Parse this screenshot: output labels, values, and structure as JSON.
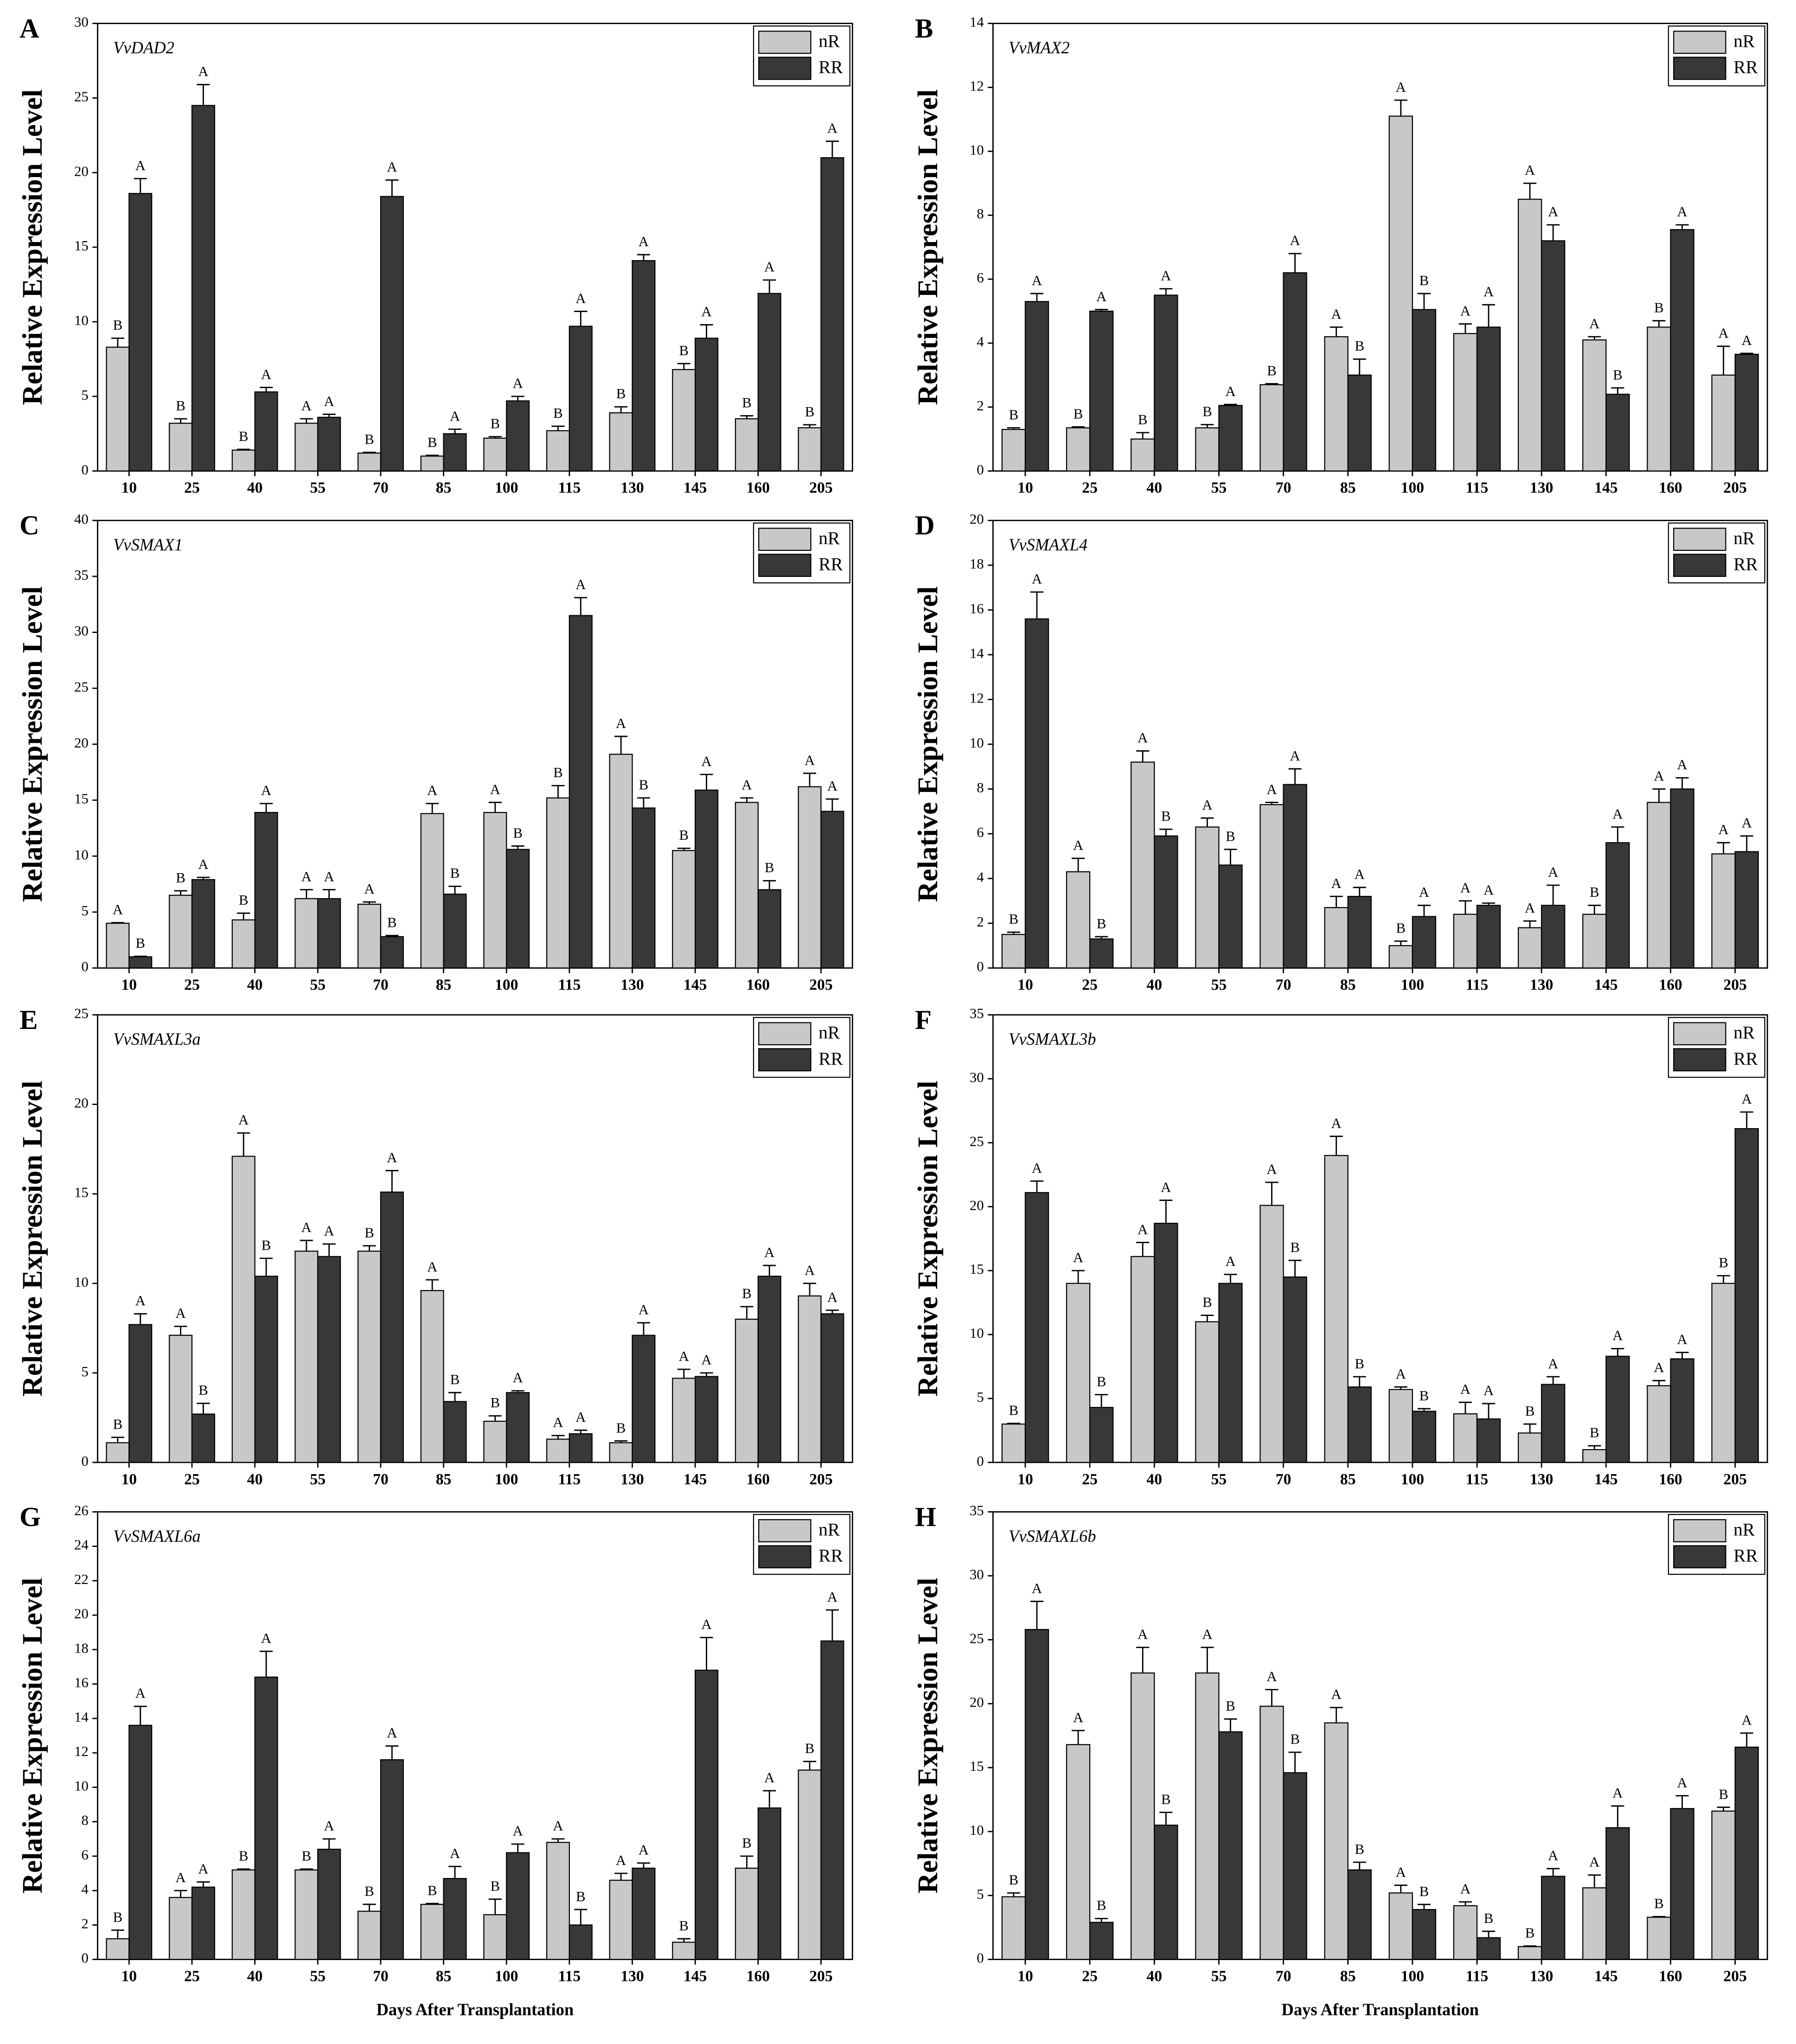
{
  "chart_data": [
    {
      "type": "bar",
      "panel": "A",
      "title": "VvDAD2",
      "ylabel": "Relative Expression Level",
      "ylim": [
        0,
        30
      ],
      "yticks": [
        0,
        5,
        10,
        15,
        20,
        25,
        30
      ],
      "categories": [
        "10",
        "25",
        "40",
        "55",
        "70",
        "85",
        "100",
        "115",
        "130",
        "145",
        "160",
        "205"
      ],
      "series": [
        {
          "name": "nR",
          "color": "#c8c8c8",
          "values": [
            8.3,
            3.2,
            1.4,
            3.2,
            1.2,
            1.0,
            2.2,
            2.7,
            3.9,
            6.8,
            3.5,
            2.9
          ],
          "errors": [
            0.6,
            0.3,
            0.05,
            0.3,
            0.05,
            0.05,
            0.1,
            0.3,
            0.4,
            0.4,
            0.2,
            0.2
          ],
          "letters": [
            "B",
            "B",
            "B",
            "A",
            "B",
            "B",
            "B",
            "B",
            "B",
            "B",
            "B",
            "B"
          ]
        },
        {
          "name": "RR",
          "color": "#383838",
          "values": [
            18.6,
            24.5,
            5.3,
            3.6,
            18.4,
            2.5,
            4.7,
            9.7,
            14.1,
            8.9,
            11.9,
            21.0
          ],
          "errors": [
            1.0,
            1.4,
            0.3,
            0.2,
            1.1,
            0.3,
            0.3,
            1.0,
            0.4,
            0.9,
            0.9,
            1.1
          ],
          "letters": [
            "A",
            "A",
            "A",
            "A",
            "A",
            "A",
            "A",
            "A",
            "A",
            "A",
            "A",
            "A"
          ]
        }
      ]
    },
    {
      "type": "bar",
      "panel": "B",
      "title": "VvMAX2",
      "ylabel": "Relative Expression Level",
      "ylim": [
        0,
        14
      ],
      "yticks": [
        0,
        2,
        4,
        6,
        8,
        10,
        12,
        14
      ],
      "categories": [
        "10",
        "25",
        "40",
        "55",
        "70",
        "85",
        "100",
        "115",
        "130",
        "145",
        "160",
        "205"
      ],
      "series": [
        {
          "name": "nR",
          "color": "#c8c8c8",
          "values": [
            1.3,
            1.35,
            1.0,
            1.35,
            2.7,
            4.2,
            11.1,
            4.3,
            8.5,
            4.1,
            4.5,
            3.0
          ],
          "errors": [
            0.05,
            0.03,
            0.2,
            0.1,
            0.03,
            0.3,
            0.5,
            0.3,
            0.5,
            0.1,
            0.2,
            0.9
          ],
          "letters": [
            "B",
            "B",
            "B",
            "B",
            "B",
            "A",
            "A",
            "A",
            "A",
            "A",
            "B",
            "A"
          ]
        },
        {
          "name": "RR",
          "color": "#383838",
          "values": [
            5.3,
            5.0,
            5.5,
            2.05,
            6.2,
            3.0,
            5.05,
            4.5,
            7.2,
            2.4,
            7.55,
            3.65
          ],
          "errors": [
            0.25,
            0.05,
            0.2,
            0.03,
            0.6,
            0.5,
            0.5,
            0.7,
            0.5,
            0.2,
            0.15,
            0.03
          ],
          "letters": [
            "A",
            "A",
            "A",
            "A",
            "A",
            "B",
            "B",
            "A",
            "A",
            "B",
            "A",
            "A"
          ]
        }
      ]
    },
    {
      "type": "bar",
      "panel": "C",
      "title": "VvSMAX1",
      "ylabel": "Relative Expression Level",
      "ylim": [
        0,
        40
      ],
      "yticks": [
        0,
        5,
        10,
        15,
        20,
        25,
        30,
        35,
        40
      ],
      "categories": [
        "10",
        "25",
        "40",
        "55",
        "70",
        "85",
        "100",
        "115",
        "130",
        "145",
        "160",
        "205"
      ],
      "series": [
        {
          "name": "nR",
          "color": "#c8c8c8",
          "values": [
            4.0,
            6.5,
            4.3,
            6.2,
            5.7,
            13.8,
            13.9,
            15.2,
            19.1,
            10.5,
            14.8,
            16.2
          ],
          "errors": [
            0.05,
            0.4,
            0.6,
            0.8,
            0.2,
            0.9,
            0.9,
            1.1,
            1.6,
            0.2,
            0.4,
            1.2
          ],
          "letters": [
            "A",
            "B",
            "B",
            "A",
            "A",
            "A",
            "A",
            "B",
            "A",
            "B",
            "A",
            "A"
          ]
        },
        {
          "name": "RR",
          "color": "#383838",
          "values": [
            1.0,
            7.9,
            13.9,
            6.2,
            2.8,
            6.6,
            10.6,
            31.5,
            14.3,
            15.9,
            7.0,
            14.0
          ],
          "errors": [
            0.05,
            0.2,
            0.8,
            0.8,
            0.1,
            0.7,
            0.3,
            1.6,
            0.9,
            1.4,
            0.8,
            1.1
          ],
          "letters": [
            "B",
            "A",
            "A",
            "A",
            "B",
            "B",
            "B",
            "A",
            "B",
            "A",
            "B",
            "A"
          ]
        }
      ]
    },
    {
      "type": "bar",
      "panel": "D",
      "title": "VvSMAXL4",
      "ylabel": "Relative Expression Level",
      "ylim": [
        0,
        20
      ],
      "yticks": [
        0,
        2,
        4,
        6,
        8,
        10,
        12,
        14,
        16,
        18,
        20
      ],
      "categories": [
        "10",
        "25",
        "40",
        "55",
        "70",
        "85",
        "100",
        "115",
        "130",
        "145",
        "160",
        "205"
      ],
      "series": [
        {
          "name": "nR",
          "color": "#c8c8c8",
          "values": [
            1.5,
            4.3,
            9.2,
            6.3,
            7.3,
            2.7,
            1.0,
            2.4,
            1.8,
            2.4,
            7.4,
            5.1
          ],
          "errors": [
            0.1,
            0.6,
            0.5,
            0.4,
            0.1,
            0.5,
            0.2,
            0.6,
            0.3,
            0.4,
            0.6,
            0.5
          ],
          "letters": [
            "B",
            "A",
            "A",
            "A",
            "A",
            "A",
            "B",
            "A",
            "A",
            "B",
            "A",
            "A"
          ]
        },
        {
          "name": "RR",
          "color": "#383838",
          "values": [
            15.6,
            1.3,
            5.9,
            4.6,
            8.2,
            3.2,
            2.3,
            2.8,
            2.8,
            5.6,
            8.0,
            5.2
          ],
          "errors": [
            1.2,
            0.1,
            0.3,
            0.7,
            0.7,
            0.4,
            0.5,
            0.1,
            0.9,
            0.7,
            0.5,
            0.7
          ],
          "letters": [
            "A",
            "B",
            "B",
            "B",
            "A",
            "A",
            "A",
            "A",
            "A",
            "A",
            "A",
            "A"
          ]
        }
      ]
    },
    {
      "type": "bar",
      "panel": "E",
      "title": "VvSMAXL3a",
      "ylabel": "Relative Expression Level",
      "ylim": [
        0,
        25
      ],
      "yticks": [
        0,
        5,
        10,
        15,
        20,
        25
      ],
      "categories": [
        "10",
        "25",
        "40",
        "55",
        "70",
        "85",
        "100",
        "115",
        "130",
        "145",
        "160",
        "205"
      ],
      "series": [
        {
          "name": "nR",
          "color": "#c8c8c8",
          "values": [
            1.1,
            7.1,
            17.1,
            11.8,
            11.8,
            9.6,
            2.3,
            1.3,
            1.1,
            4.7,
            8.0,
            9.3
          ],
          "errors": [
            0.3,
            0.5,
            1.3,
            0.6,
            0.3,
            0.6,
            0.3,
            0.2,
            0.1,
            0.5,
            0.7,
            0.7
          ],
          "letters": [
            "B",
            "A",
            "A",
            "A",
            "B",
            "A",
            "B",
            "A",
            "B",
            "A",
            "B",
            "A"
          ]
        },
        {
          "name": "RR",
          "color": "#383838",
          "values": [
            7.7,
            2.7,
            10.4,
            11.5,
            15.1,
            3.4,
            3.9,
            1.6,
            7.1,
            4.8,
            10.4,
            8.3
          ],
          "errors": [
            0.6,
            0.6,
            1.0,
            0.7,
            1.2,
            0.5,
            0.1,
            0.2,
            0.7,
            0.2,
            0.6,
            0.2
          ],
          "letters": [
            "A",
            "B",
            "B",
            "A",
            "A",
            "B",
            "A",
            "A",
            "A",
            "A",
            "A",
            "A"
          ]
        }
      ]
    },
    {
      "type": "bar",
      "panel": "F",
      "title": "VvSMAXL3b",
      "ylabel": "Relative Expression Level",
      "ylim": [
        0,
        35
      ],
      "yticks": [
        0,
        5,
        10,
        15,
        20,
        25,
        30,
        35
      ],
      "categories": [
        "10",
        "25",
        "40",
        "55",
        "70",
        "85",
        "100",
        "115",
        "130",
        "145",
        "160",
        "205"
      ],
      "series": [
        {
          "name": "nR",
          "color": "#c8c8c8",
          "values": [
            3.0,
            14.0,
            16.1,
            11.0,
            20.1,
            24.0,
            5.7,
            3.8,
            2.3,
            1.0,
            6.0,
            14.0
          ],
          "errors": [
            0.05,
            1.0,
            1.1,
            0.5,
            1.8,
            1.5,
            0.2,
            0.9,
            0.7,
            0.3,
            0.4,
            0.6
          ],
          "letters": [
            "B",
            "A",
            "A",
            "B",
            "A",
            "A",
            "A",
            "A",
            "B",
            "B",
            "A",
            "B"
          ]
        },
        {
          "name": "RR",
          "color": "#383838",
          "values": [
            21.1,
            4.3,
            18.7,
            14.0,
            14.5,
            5.9,
            4.0,
            3.4,
            6.1,
            8.3,
            8.1,
            26.1
          ],
          "errors": [
            0.9,
            1.0,
            1.8,
            0.7,
            1.3,
            0.8,
            0.2,
            1.2,
            0.6,
            0.6,
            0.5,
            1.3
          ],
          "letters": [
            "A",
            "B",
            "A",
            "A",
            "B",
            "B",
            "B",
            "A",
            "A",
            "A",
            "A",
            "A"
          ]
        }
      ]
    },
    {
      "type": "bar",
      "panel": "G",
      "title": "VvSMAXL6a",
      "ylabel": "Relative Expression Level",
      "xlabel": "Days After Transplantation",
      "ylim": [
        0,
        26
      ],
      "yticks": [
        0,
        2,
        4,
        6,
        8,
        10,
        12,
        14,
        16,
        18,
        20,
        22,
        24,
        26
      ],
      "categories": [
        "10",
        "25",
        "40",
        "55",
        "70",
        "85",
        "100",
        "115",
        "130",
        "145",
        "160",
        "205"
      ],
      "series": [
        {
          "name": "nR",
          "color": "#c8c8c8",
          "values": [
            1.2,
            3.6,
            5.2,
            5.2,
            2.8,
            3.2,
            2.6,
            6.8,
            4.6,
            1.0,
            5.3,
            11.0
          ],
          "errors": [
            0.5,
            0.4,
            0.05,
            0.05,
            0.4,
            0.05,
            0.9,
            0.2,
            0.4,
            0.2,
            0.7,
            0.5
          ],
          "letters": [
            "B",
            "A",
            "B",
            "B",
            "B",
            "B",
            "B",
            "A",
            "A",
            "B",
            "B",
            "B"
          ]
        },
        {
          "name": "RR",
          "color": "#383838",
          "values": [
            13.6,
            4.2,
            16.4,
            6.4,
            11.6,
            4.7,
            6.2,
            2.0,
            5.3,
            16.8,
            8.8,
            18.5
          ],
          "errors": [
            1.1,
            0.3,
            1.5,
            0.6,
            0.8,
            0.7,
            0.5,
            0.9,
            0.3,
            1.9,
            1.0,
            1.8
          ],
          "letters": [
            "A",
            "A",
            "A",
            "A",
            "A",
            "A",
            "A",
            "B",
            "A",
            "A",
            "A",
            "A"
          ]
        }
      ]
    },
    {
      "type": "bar",
      "panel": "H",
      "title": "VvSMAXL6b",
      "ylabel": "Relative Expression Level",
      "xlabel": "Days After Transplantation",
      "ylim": [
        0,
        35
      ],
      "yticks": [
        0,
        5,
        10,
        15,
        20,
        25,
        30,
        35
      ],
      "categories": [
        "10",
        "25",
        "40",
        "55",
        "70",
        "85",
        "100",
        "115",
        "130",
        "145",
        "160",
        "205"
      ],
      "series": [
        {
          "name": "nR",
          "color": "#c8c8c8",
          "values": [
            4.9,
            16.8,
            22.4,
            22.4,
            19.8,
            18.5,
            5.2,
            4.2,
            1.0,
            5.6,
            3.3,
            11.6
          ],
          "errors": [
            0.3,
            1.1,
            2.0,
            2.0,
            1.3,
            1.2,
            0.6,
            0.3,
            0.05,
            1.0,
            0.05,
            0.3
          ],
          "letters": [
            "B",
            "A",
            "A",
            "A",
            "A",
            "A",
            "A",
            "A",
            "B",
            "A",
            "B",
            "B"
          ]
        },
        {
          "name": "RR",
          "color": "#383838",
          "values": [
            25.8,
            2.9,
            10.5,
            17.8,
            14.6,
            7.0,
            3.9,
            1.7,
            6.5,
            10.3,
            11.8,
            16.6
          ],
          "errors": [
            2.2,
            0.3,
            1.0,
            1.0,
            1.6,
            0.6,
            0.4,
            0.5,
            0.6,
            1.7,
            1.0,
            1.1
          ],
          "letters": [
            "A",
            "B",
            "B",
            "B",
            "B",
            "B",
            "B",
            "B",
            "A",
            "A",
            "A",
            "A"
          ]
        }
      ]
    }
  ]
}
